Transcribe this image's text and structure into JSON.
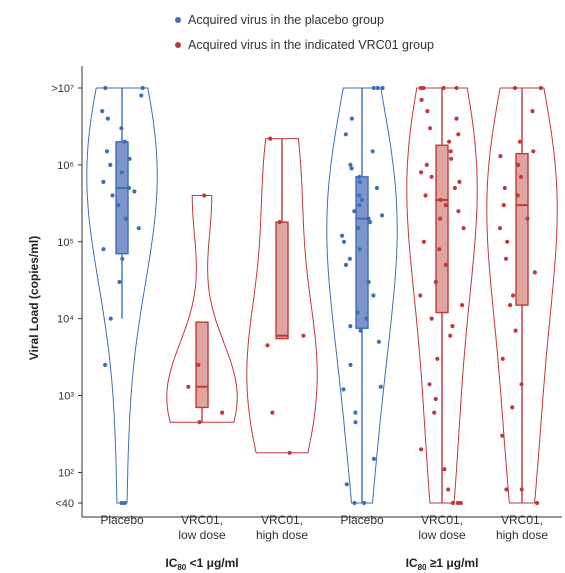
{
  "chart_data": {
    "type": "violin",
    "ylabel": "Viral Load (copies/ml)",
    "yscale": "log",
    "ylim": [
      40,
      10000000
    ],
    "yticks": [
      {
        "value": 40,
        "label": "<40"
      },
      {
        "value": 100,
        "label": "10²"
      },
      {
        "value": 1000,
        "label": "10³"
      },
      {
        "value": 10000,
        "label": "10⁴"
      },
      {
        "value": 100000,
        "label": "10⁵"
      },
      {
        "value": 1000000,
        "label": "10⁶"
      },
      {
        "value": 10000000,
        "label": ">10⁷"
      }
    ],
    "legend": {
      "placement": "top",
      "entries": [
        {
          "label": "Acquired virus in the placebo group",
          "color": "#3d6fb5"
        },
        {
          "label": "Acquired virus in the indicated VRC01 group",
          "color": "#c0393b"
        }
      ]
    },
    "groups": [
      {
        "label_main": "IC",
        "label_sub": "80",
        "label_rest": " <1 μg/ml"
      },
      {
        "label_main": "IC",
        "label_sub": "80",
        "label_rest": " ≥1 μg/ml"
      }
    ],
    "categories": [
      {
        "label": [
          "Placebo"
        ],
        "group": 0,
        "color": "#3d6fb5",
        "arm": "placebo",
        "box": {
          "q1": 70000,
          "median": 500000,
          "q3": 2000000,
          "min": 10000,
          "max": 10000000
        },
        "points": [
          40,
          40,
          2500,
          10000,
          30000,
          60000,
          80000,
          150000,
          200000,
          300000,
          400000,
          450000,
          500000,
          600000,
          800000,
          1000000,
          1200000,
          1500000,
          2000000,
          3000000,
          4000000,
          5000000,
          8000000,
          10000000,
          10000000
        ]
      },
      {
        "label": [
          "VRC01,",
          "low dose"
        ],
        "group": 0,
        "color": "#c0393b",
        "arm": "vrc01",
        "box": {
          "q1": 700,
          "median": 1300,
          "q3": 9000,
          "min": 450,
          "max": 9000
        },
        "points": [
          450,
          600,
          1300,
          2500,
          400000
        ]
      },
      {
        "label": [
          "VRC01,",
          "high dose"
        ],
        "group": 0,
        "color": "#c0393b",
        "arm": "vrc01",
        "box": {
          "q1": 5500,
          "median": 6000,
          "q3": 180000,
          "min": 5500,
          "max": 2200000
        },
        "points": [
          180,
          600,
          4500,
          6000,
          180000,
          2200000
        ]
      },
      {
        "label": [
          "Placebo"
        ],
        "group": 1,
        "color": "#3d6fb5",
        "arm": "placebo",
        "box": {
          "q1": 7500,
          "median": 200000,
          "q3": 700000,
          "min": 40,
          "max": 10000000
        },
        "points": [
          40,
          40,
          70,
          150,
          450,
          600,
          1200,
          1300,
          2500,
          5000,
          7000,
          8000,
          10000,
          12000,
          20000,
          30000,
          50000,
          60000,
          80000,
          100000,
          120000,
          150000,
          180000,
          200000,
          220000,
          250000,
          300000,
          350000,
          400000,
          500000,
          600000,
          700000,
          900000,
          1000000,
          1500000,
          2500000,
          4000000,
          10000000,
          10000000,
          10000000
        ]
      },
      {
        "label": [
          "VRC01,",
          "low dose"
        ],
        "group": 1,
        "color": "#c0393b",
        "arm": "vrc01",
        "box": {
          "q1": 12000,
          "median": 350000,
          "q3": 1800000,
          "min": 40,
          "max": 10000000
        },
        "points": [
          40,
          40,
          40,
          60,
          110,
          200,
          600,
          900,
          1400,
          3000,
          6000,
          8000,
          10000,
          15000,
          20000,
          30000,
          50000,
          80000,
          100000,
          150000,
          200000,
          250000,
          300000,
          350000,
          400000,
          500000,
          600000,
          700000,
          800000,
          1000000,
          1200000,
          1500000,
          2000000,
          2500000,
          3000000,
          4000000,
          5000000,
          7000000,
          10000000,
          10000000,
          10000000,
          10000000
        ]
      },
      {
        "label": [
          "VRC01,",
          "high dose"
        ],
        "group": 1,
        "color": "#c0393b",
        "arm": "vrc01",
        "box": {
          "q1": 15000,
          "median": 300000,
          "q3": 1400000,
          "min": 40,
          "max": 10000000
        },
        "points": [
          40,
          60,
          60,
          300,
          700,
          1400,
          3000,
          7000,
          15000,
          20000,
          40000,
          60000,
          100000,
          150000,
          200000,
          300000,
          400000,
          500000,
          700000,
          1000000,
          1300000,
          1500000,
          2000000,
          5000000,
          10000000,
          10000000
        ]
      }
    ]
  }
}
